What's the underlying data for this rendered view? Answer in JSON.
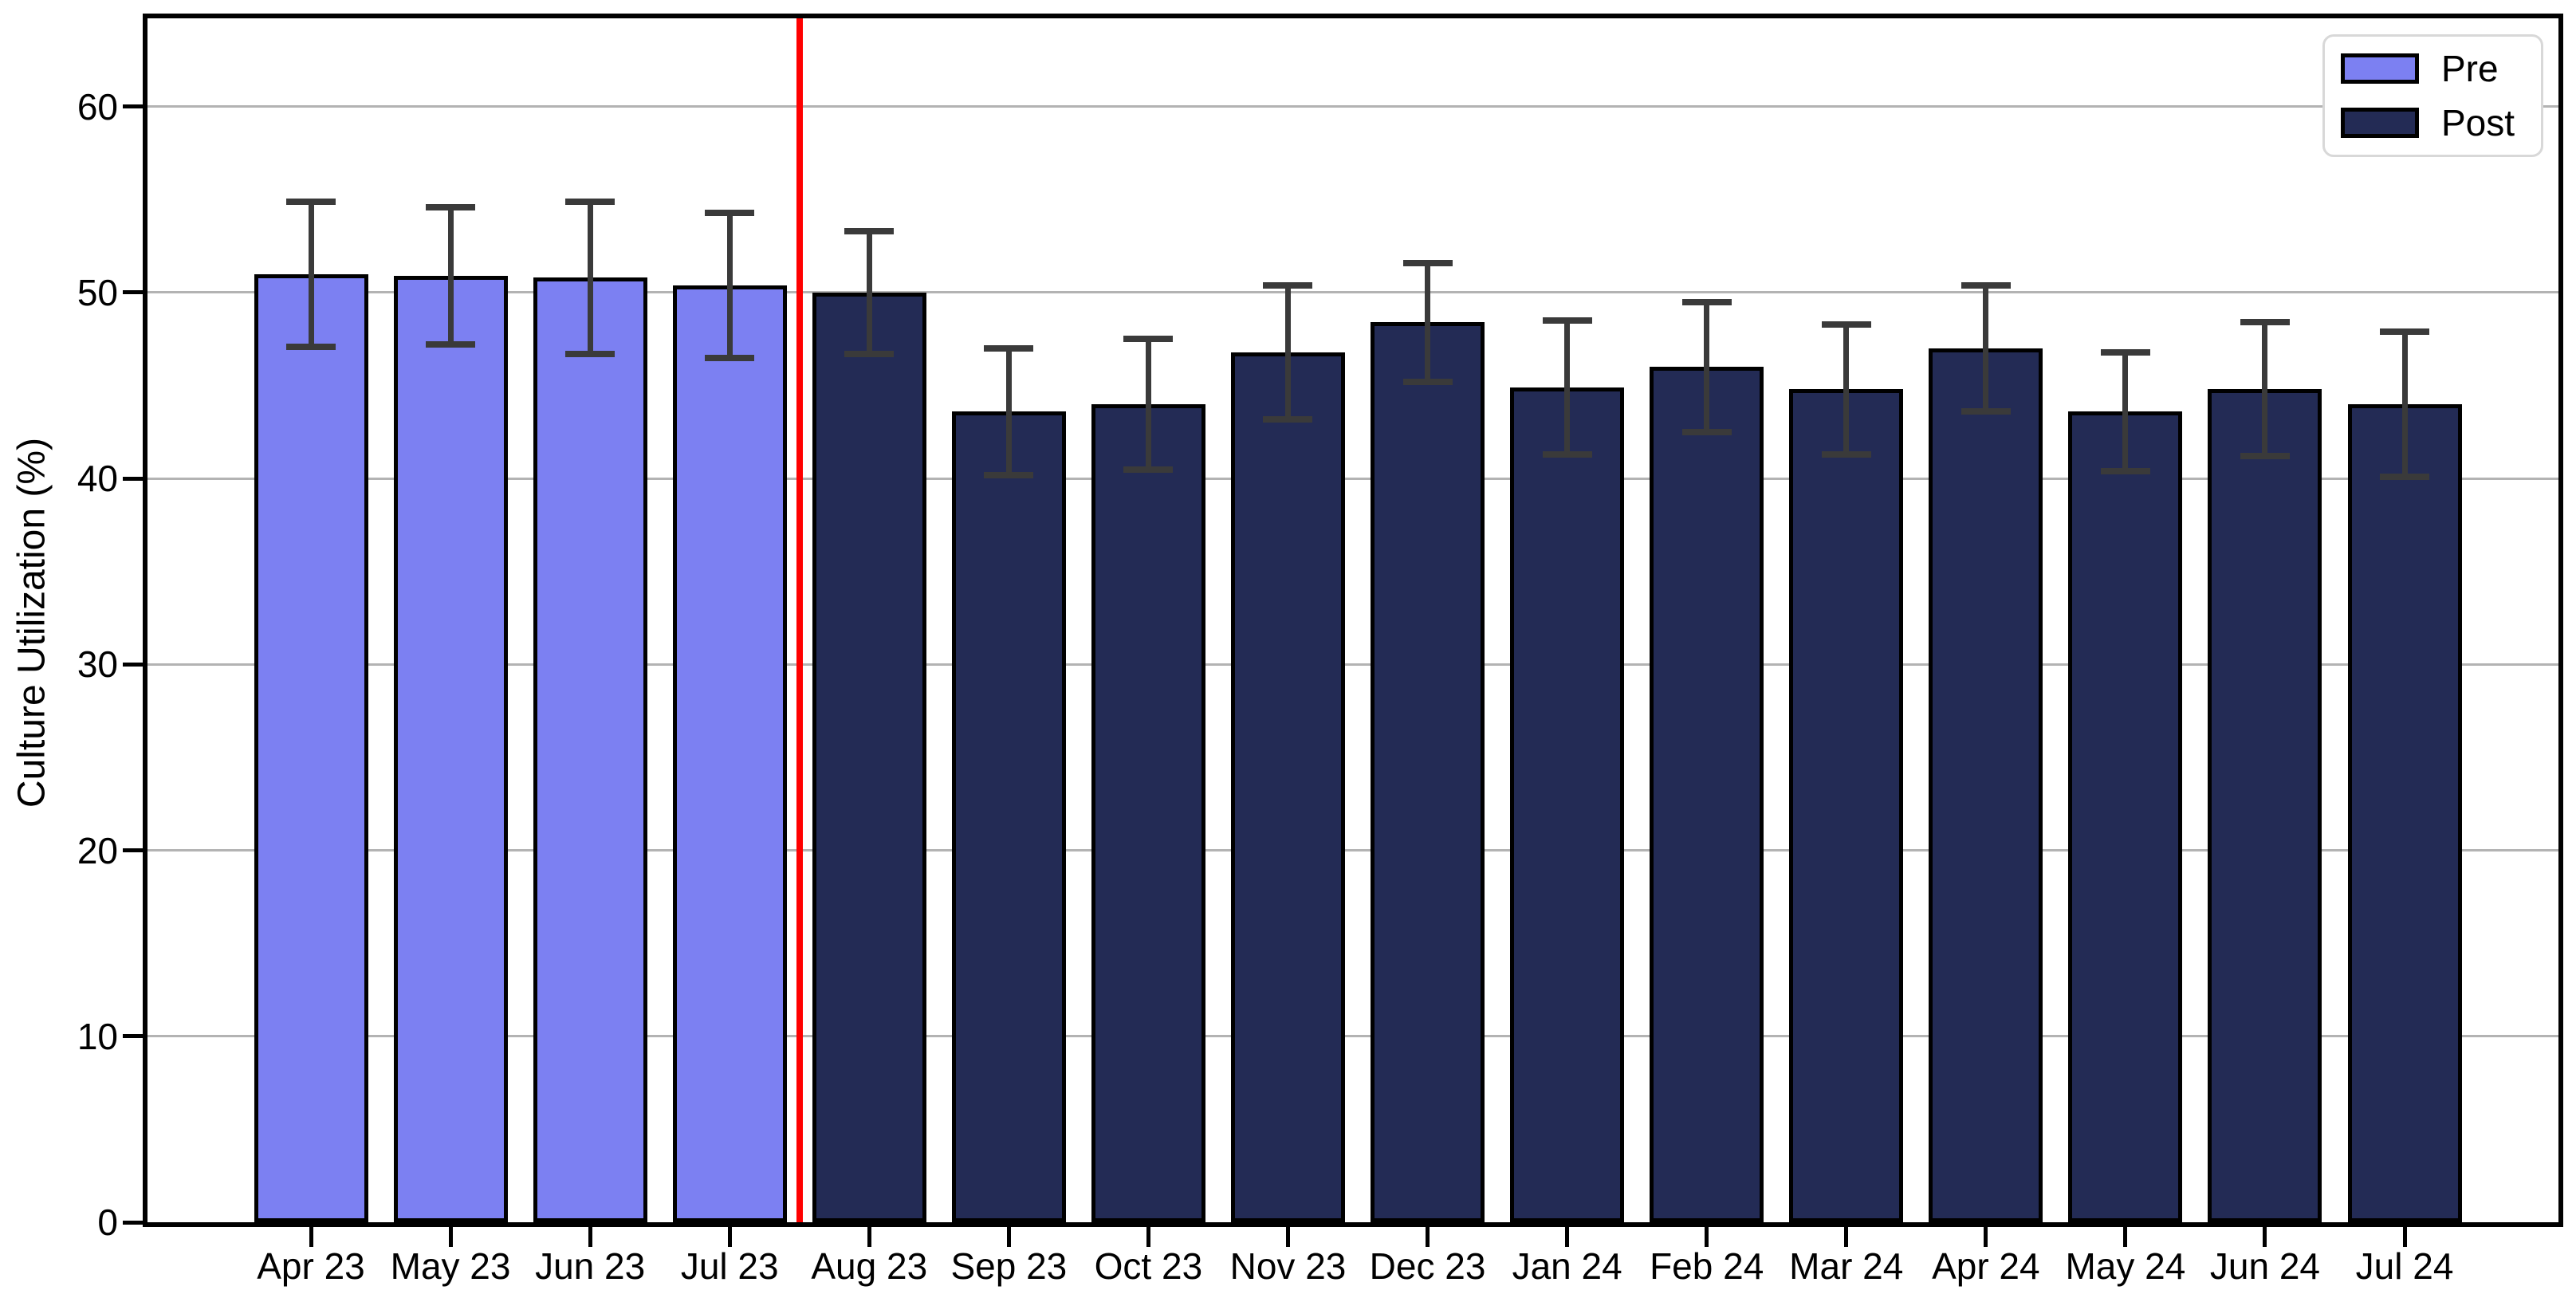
{
  "figure": {
    "background": "#FFFFFF"
  },
  "chart_data": {
    "type": "bar",
    "title": "",
    "xlabel": "",
    "ylabel": "Culture Utilization (%)",
    "ylim": [
      0,
      64.75
    ],
    "yticks": [
      0,
      10,
      20,
      30,
      40,
      50,
      60
    ],
    "grid": "horizontal",
    "legend_position": "upper-right",
    "categories": [
      "Apr 23",
      "May 23",
      "Jun 23",
      "Jul 23",
      "Aug 23",
      "Sep 23",
      "Oct 23",
      "Nov 23",
      "Dec 23",
      "Jan 24",
      "Feb 24",
      "Mar 24",
      "Apr 24",
      "May 24",
      "Jun 24",
      "Jul 24"
    ],
    "series_legend": [
      {
        "label": "Pre",
        "color": "#7C80F2"
      },
      {
        "label": "Post",
        "color": "#232B55"
      }
    ],
    "bars": [
      {
        "label": "Apr 23",
        "group": "Pre",
        "value": 51.0,
        "error": 3.9
      },
      {
        "label": "May 23",
        "group": "Pre",
        "value": 50.9,
        "error": 3.7
      },
      {
        "label": "Jun 23",
        "group": "Pre",
        "value": 50.8,
        "error": 4.1
      },
      {
        "label": "Jul 23",
        "group": "Pre",
        "value": 50.4,
        "error": 3.9
      },
      {
        "label": "Aug 23",
        "group": "Post",
        "value": 50.0,
        "error": 3.3
      },
      {
        "label": "Sep 23",
        "group": "Post",
        "value": 43.6,
        "error": 3.4
      },
      {
        "label": "Oct 23",
        "group": "Post",
        "value": 44.0,
        "error": 3.5
      },
      {
        "label": "Nov 23",
        "group": "Post",
        "value": 46.8,
        "error": 3.6
      },
      {
        "label": "Dec 23",
        "group": "Post",
        "value": 48.4,
        "error": 3.2
      },
      {
        "label": "Jan 24",
        "group": "Post",
        "value": 44.9,
        "error": 3.6
      },
      {
        "label": "Feb 24",
        "group": "Post",
        "value": 46.0,
        "error": 3.5
      },
      {
        "label": "Mar 24",
        "group": "Post",
        "value": 44.8,
        "error": 3.5
      },
      {
        "label": "Apr 24",
        "group": "Post",
        "value": 47.0,
        "error": 3.4
      },
      {
        "label": "May 24",
        "group": "Post",
        "value": 43.6,
        "error": 3.2
      },
      {
        "label": "Jun 24",
        "group": "Post",
        "value": 44.8,
        "error": 3.6
      },
      {
        "label": "Jul 24",
        "group": "Post",
        "value": 44.0,
        "error": 3.9
      }
    ],
    "intervention_line": {
      "between": [
        "Jul 23",
        "Aug 23"
      ],
      "color": "#FF0000"
    },
    "colors": {
      "pre": "#7C80F2",
      "post": "#232B55",
      "error_bar": "#3A3A3A",
      "gridline": "#B3B3B3",
      "spine": "#000000"
    }
  }
}
